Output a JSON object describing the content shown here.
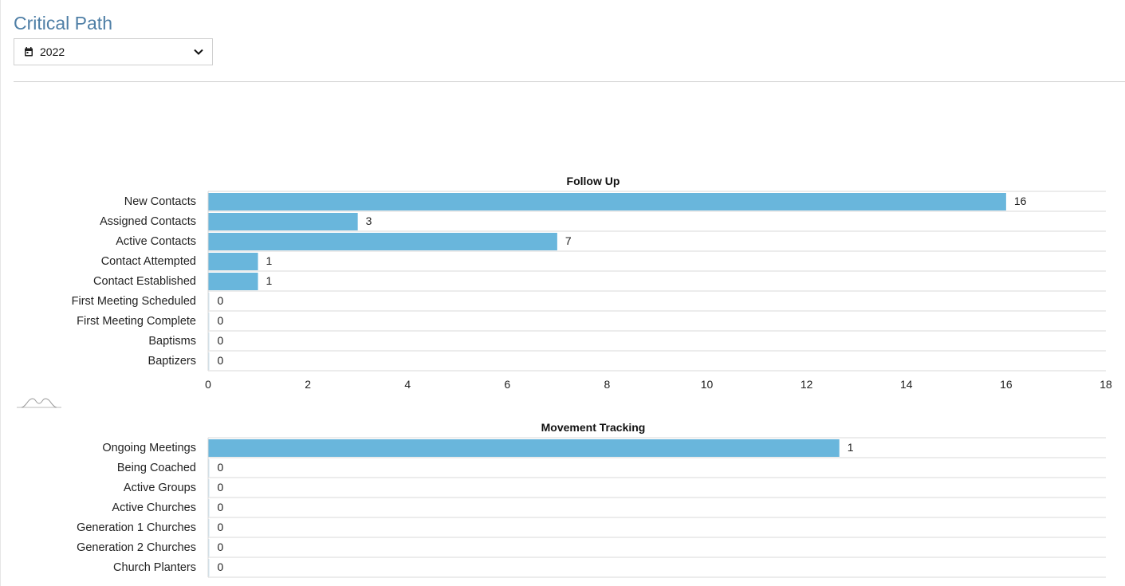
{
  "page": {
    "title": "Critical Path",
    "year_select": {
      "value": "2022",
      "icon": "calendar-icon",
      "chevron": "chevron-down-icon"
    }
  },
  "chart_data": [
    {
      "type": "bar",
      "orientation": "horizontal",
      "title": "Follow Up",
      "categories": [
        "New Contacts",
        "Assigned Contacts",
        "Active Contacts",
        "Contact Attempted",
        "Contact Established",
        "First Meeting Scheduled",
        "First Meeting Complete",
        "Baptisms",
        "Baptizers"
      ],
      "values": [
        16,
        3,
        7,
        1,
        1,
        0,
        0,
        0,
        0
      ],
      "xlim": [
        0,
        18
      ],
      "xticks": [
        0,
        2,
        4,
        6,
        8,
        10,
        12,
        14,
        16,
        18
      ],
      "grid": "horizontal",
      "color": "#69b6dc",
      "data_labels": true
    },
    {
      "type": "bar",
      "orientation": "horizontal",
      "title": "Movement Tracking",
      "categories": [
        "Ongoing Meetings",
        "Being Coached",
        "Active Groups",
        "Active Churches",
        "Generation 1 Churches",
        "Generation 2 Churches",
        "Church Planters"
      ],
      "values": [
        1,
        0,
        0,
        0,
        0,
        0,
        0
      ],
      "xlim": [
        0,
        1.4222
      ],
      "grid": "horizontal",
      "color": "#69b6dc",
      "data_labels": true
    }
  ]
}
